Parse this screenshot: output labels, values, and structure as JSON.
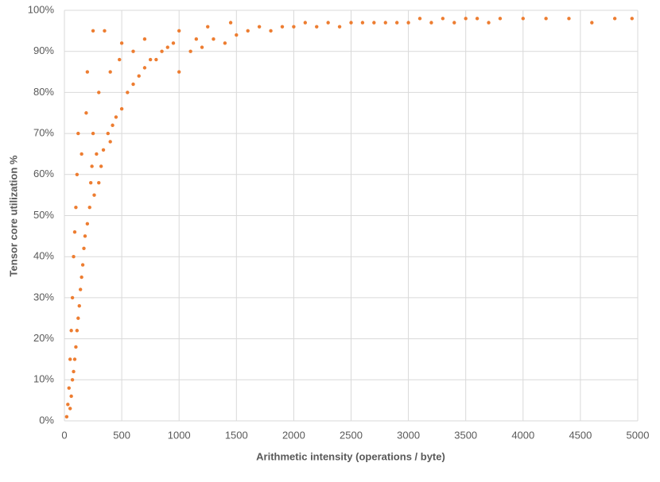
{
  "chart_data": {
    "type": "scatter",
    "x_label": "Arithmetic intensity (operations / byte)",
    "y_label": "Tensor core utilization %",
    "color": "#ed7d31",
    "grid": true,
    "xlim": [
      0,
      5000
    ],
    "xticks": [
      0,
      500,
      1000,
      1500,
      2000,
      2500,
      3000,
      3500,
      4000,
      4500,
      5000
    ],
    "ylim": [
      0,
      100
    ],
    "yticks": [
      {
        "value": 0,
        "label": "0%"
      },
      {
        "value": 10,
        "label": "10%"
      },
      {
        "value": 20,
        "label": "20%"
      },
      {
        "value": 30,
        "label": "30%"
      },
      {
        "value": 40,
        "label": "40%"
      },
      {
        "value": 50,
        "label": "50%"
      },
      {
        "value": 60,
        "label": "60%"
      },
      {
        "value": 70,
        "label": "70%"
      },
      {
        "value": 80,
        "label": "80%"
      },
      {
        "value": 90,
        "label": "90%"
      },
      {
        "value": 100,
        "label": "100%"
      }
    ],
    "x": [
      20,
      30,
      40,
      50,
      50,
      60,
      60,
      70,
      70,
      80,
      80,
      90,
      90,
      100,
      100,
      110,
      110,
      120,
      120,
      130,
      140,
      150,
      150,
      160,
      170,
      180,
      190,
      200,
      200,
      220,
      230,
      240,
      250,
      250,
      260,
      280,
      300,
      300,
      320,
      340,
      350,
      380,
      400,
      400,
      420,
      450,
      480,
      500,
      500,
      550,
      600,
      600,
      650,
      700,
      700,
      750,
      800,
      850,
      900,
      950,
      1000,
      1000,
      1100,
      1150,
      1200,
      1250,
      1300,
      1400,
      1450,
      1500,
      1600,
      1700,
      1800,
      1900,
      2000,
      2100,
      2200,
      2300,
      2400,
      2500,
      2600,
      2700,
      2800,
      2900,
      3000,
      3100,
      3200,
      3300,
      3400,
      3500,
      3600,
      3700,
      3800,
      4000,
      4200,
      4400,
      4600,
      4800,
      4950
    ],
    "y": [
      1,
      4,
      8,
      3,
      15,
      6,
      22,
      10,
      30,
      12,
      40,
      15,
      46,
      18,
      52,
      22,
      60,
      25,
      70,
      28,
      32,
      35,
      65,
      38,
      42,
      45,
      75,
      48,
      85,
      52,
      58,
      62,
      95,
      70,
      55,
      65,
      58,
      80,
      62,
      66,
      95,
      70,
      68,
      85,
      72,
      74,
      88,
      76,
      92,
      80,
      82,
      90,
      84,
      86,
      93,
      88,
      88,
      90,
      91,
      92,
      85,
      95,
      90,
      93,
      91,
      96,
      93,
      92,
      97,
      94,
      95,
      96,
      95,
      96,
      96,
      97,
      96,
      97,
      96,
      97,
      97,
      97,
      97,
      97,
      97,
      98,
      97,
      98,
      97,
      98,
      98,
      97,
      98,
      98,
      98,
      98,
      97,
      98,
      98
    ]
  }
}
